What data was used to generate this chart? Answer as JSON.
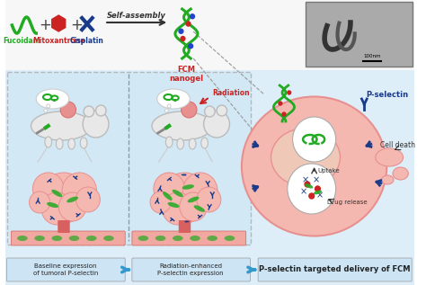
{
  "bg_top": "#f7f7f7",
  "bg_bottom": "#ddeef8",
  "green": "#22aa22",
  "red": "#cc2222",
  "blue": "#1a3a8a",
  "pink_light": "#f4b8b0",
  "pink_med": "#e89090",
  "pink_dark": "#d97070",
  "salmon": "#f0c8b8",
  "gray_mouse": "#e8e8e8",
  "gray_mouse_edge": "#bbbbbb",
  "blood_red": "#d96060",
  "blood_light": "#f0a8a0",
  "arrow_blue": "#3399cc",
  "label1": "Baseline expression\nof tumoral P-selectin",
  "label2": "Radiation-enhanced\nP-selectin expression",
  "label3": "P-selectin targeted delivery of FCM",
  "fucoidan": "Fucoidan",
  "mitoxantrone": "Mitoxantrone",
  "cisplatin": "Cisplatin",
  "self_assembly": "Self-assembly",
  "fcm_nanogel": "FCM\nnanogel",
  "p_selectin": "P-selectin",
  "uptake": "Uptake",
  "drug_release": "Drug release",
  "cell_death": "Cell death",
  "radiation": "Radiation",
  "scale": "100nm"
}
